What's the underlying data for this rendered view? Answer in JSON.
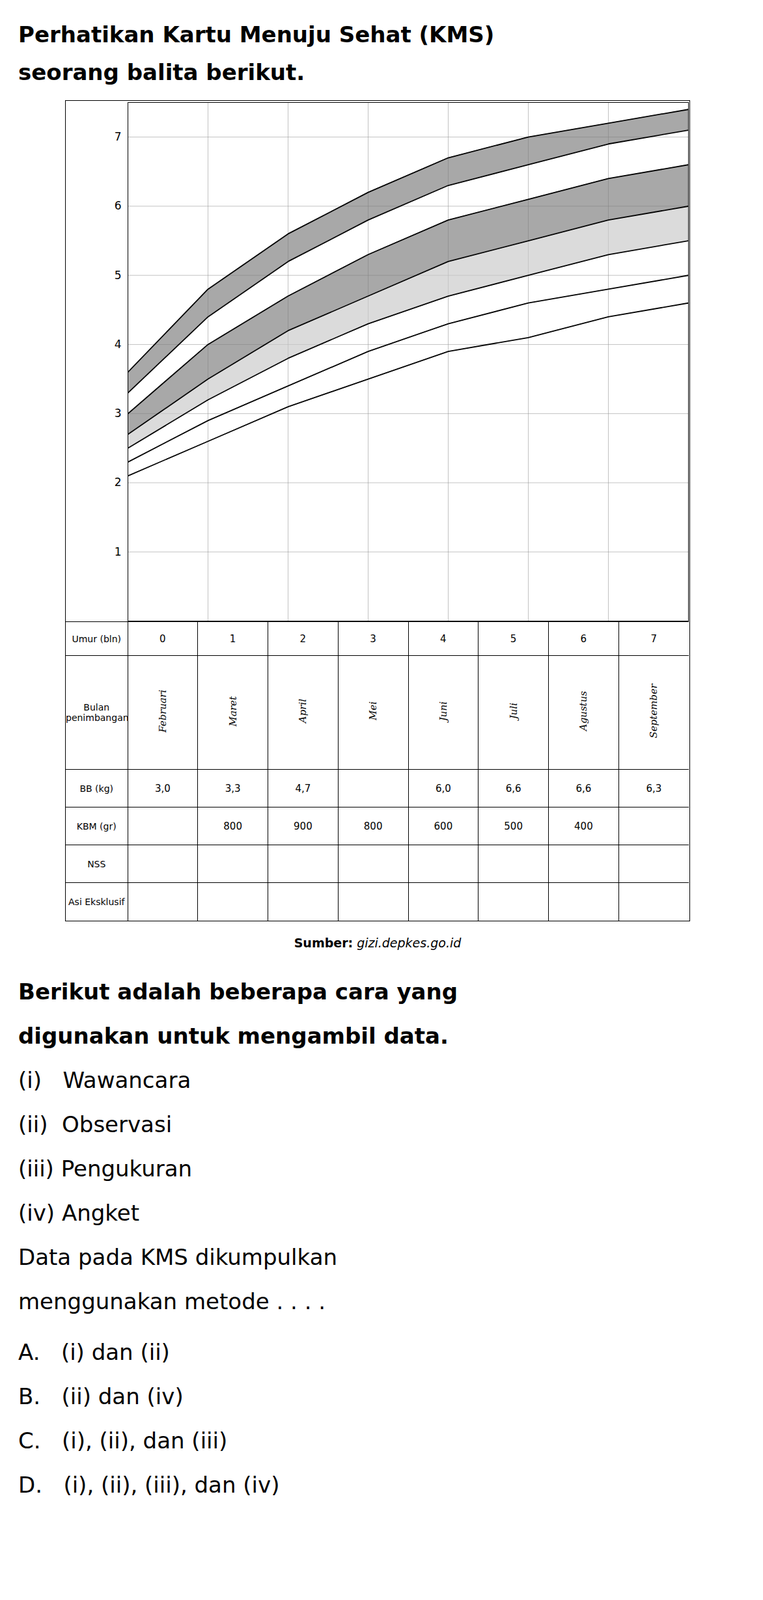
{
  "chart_data": {
    "type": "line",
    "title": "Perhatikan Kartu Menuju Sehat (KMS)\nseorang balita berikut.",
    "x": [
      0,
      1,
      2,
      3,
      4,
      5,
      6,
      7
    ],
    "series": [
      {
        "values": [
          3.6,
          4.8,
          5.6,
          6.2,
          6.7,
          7.0,
          7.2,
          7.4
        ]
      },
      {
        "values": [
          3.3,
          4.4,
          5.2,
          5.8,
          6.3,
          6.6,
          6.9,
          7.1
        ]
      },
      {
        "values": [
          3.0,
          4.0,
          4.7,
          5.3,
          5.8,
          6.1,
          6.4,
          6.6
        ]
      },
      {
        "values": [
          2.7,
          3.5,
          4.2,
          4.7,
          5.2,
          5.5,
          5.8,
          6.0
        ]
      },
      {
        "values": [
          2.5,
          3.2,
          3.8,
          4.3,
          4.7,
          5.0,
          5.3,
          5.5
        ]
      },
      {
        "values": [
          2.3,
          2.9,
          3.4,
          3.9,
          4.3,
          4.6,
          4.8,
          5.0
        ]
      },
      {
        "values": [
          2.1,
          2.6,
          3.1,
          3.5,
          3.9,
          4.1,
          4.4,
          4.6
        ]
      }
    ],
    "color": "#000000",
    "bands": [
      {
        "between": [
          1,
          0
        ],
        "color": "#7a7a7a"
      },
      {
        "between": [
          3,
          2
        ],
        "color": "#7a7a7a"
      },
      {
        "between": [
          4,
          3
        ],
        "color": "#c8c8c8"
      }
    ],
    "xlim": [
      0,
      7
    ],
    "xticks": [
      0,
      1,
      2,
      3,
      4,
      5,
      6,
      7
    ],
    "ylim": [
      0,
      7.5
    ],
    "yticks": [
      1,
      2,
      3,
      4,
      5,
      6,
      7
    ],
    "grid": true,
    "tick_labels": "y",
    "table": [
      {
        "label": "Umur (bln)",
        "cells": [
          0,
          1,
          2,
          3,
          4,
          5,
          6,
          7
        ]
      },
      {
        "label": "Bulan\npenimbangan",
        "cells": [
          "Februari",
          "Maret",
          "April",
          "Mei",
          "Juni",
          "Juli",
          "Agustus",
          "September"
        ]
      },
      {
        "label": "BB (kg)",
        "cells": [
          "3,0",
          "3,3",
          "4,7",
          null,
          "6,0",
          "6,6",
          "6,6",
          "6,3"
        ]
      },
      {
        "label": "KBM (gr)",
        "cells": [
          null,
          "800",
          "900",
          "800",
          "600",
          "500",
          "400",
          null
        ]
      },
      {
        "label": "NSS"
      },
      {
        "label": "Asi Eksklusif"
      }
    ],
    "source": {
      "label": "Sumber:",
      "text": "gizi.depkes.go.id"
    },
    "question": [
      "Berikut adalah beberapa cara yang",
      "digunakan untuk mengambil data.",
      "(i)   Wawancara",
      "(ii)  Observasi",
      "(iii) Pengukuran",
      "(iv) Angket",
      "Data pada KMS dikumpulkan",
      "menggunakan metode . . . ."
    ],
    "options": [
      "A.   (i) dan (ii)",
      "B.   (ii) dan (iv)",
      "C.   (i), (ii), dan (iii)",
      "D.   (i), (ii), (iii), dan (iv)"
    ]
  }
}
